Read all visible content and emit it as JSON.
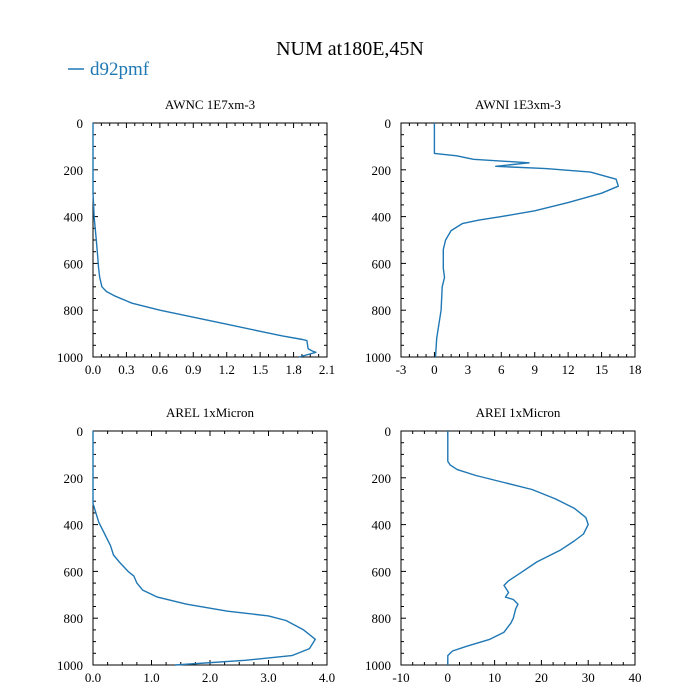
{
  "title": "NUM at180E,45N",
  "legend": [
    {
      "label": "d92pmf",
      "color": "#1f77b4"
    }
  ],
  "chart_data": [
    {
      "type": "line",
      "title": "AWNC  1E7xm-3",
      "xlim": [
        0,
        2.1
      ],
      "ylim": [
        1000,
        0
      ],
      "xticks": [
        "0.0",
        "0.3",
        "0.6",
        "0.9",
        "1.2",
        "1.5",
        "1.8",
        "2.1"
      ],
      "yticks": [
        "0",
        "200",
        "400",
        "600",
        "800",
        "1000"
      ],
      "series": [
        {
          "name": "d92pmf",
          "color": "#1f77b4",
          "x": [
            0,
            0,
            0.005,
            0.01,
            0.02,
            0.03,
            0.04,
            0.05,
            0.06,
            0.08,
            0.12,
            0.2,
            0.35,
            0.6,
            0.9,
            1.2,
            1.5,
            1.7,
            1.88,
            1.92,
            1.93,
            1.97,
            2.0,
            1.85
          ],
          "y": [
            0,
            300,
            350,
            400,
            450,
            500,
            560,
            620,
            660,
            700,
            720,
            740,
            770,
            800,
            830,
            860,
            890,
            910,
            925,
            930,
            965,
            975,
            980,
            1000
          ]
        }
      ]
    },
    {
      "type": "line",
      "title": "AWNI  1E3xm-3",
      "xlim": [
        -3,
        18
      ],
      "ylim": [
        1000,
        0
      ],
      "xticks": [
        "-3",
        "0",
        "3",
        "6",
        "9",
        "12",
        "15",
        "18"
      ],
      "yticks": [
        "0",
        "200",
        "400",
        "600",
        "800",
        "1000"
      ],
      "series": [
        {
          "name": "d92pmf",
          "color": "#1f77b4",
          "x": [
            0,
            0,
            2,
            3.5,
            8.5,
            5.5,
            10,
            14,
            16.3,
            16.5,
            15,
            12,
            9,
            6,
            4,
            2.5,
            1.5,
            1,
            0.8,
            0.8,
            0.9,
            0.7,
            0.6,
            0.4,
            0.2,
            0.1
          ],
          "y": [
            0,
            130,
            140,
            155,
            170,
            185,
            195,
            210,
            240,
            270,
            300,
            340,
            375,
            400,
            415,
            430,
            460,
            500,
            540,
            620,
            660,
            700,
            800,
            860,
            920,
            1000
          ]
        }
      ]
    },
    {
      "type": "line",
      "title": "AREL  1xMicron",
      "xlim": [
        0,
        4.0
      ],
      "ylim": [
        1000,
        0
      ],
      "xticks": [
        "0.0",
        "1.0",
        "2.0",
        "3.0",
        "4.0"
      ],
      "yticks": [
        "0",
        "200",
        "400",
        "600",
        "800",
        "1000"
      ],
      "series": [
        {
          "name": "d92pmf",
          "color": "#1f77b4",
          "x": [
            0,
            0,
            0.05,
            0.1,
            0.2,
            0.3,
            0.35,
            0.45,
            0.6,
            0.7,
            0.75,
            0.85,
            1.1,
            1.6,
            2.3,
            3.0,
            3.3,
            3.6,
            3.8,
            3.7,
            3.4,
            2.6,
            1.4
          ],
          "y": [
            0,
            310,
            350,
            390,
            440,
            490,
            530,
            560,
            600,
            620,
            650,
            680,
            710,
            740,
            770,
            790,
            810,
            850,
            890,
            930,
            960,
            980,
            1000
          ]
        }
      ]
    },
    {
      "type": "line",
      "title": "AREI  1xMicron",
      "xlim": [
        -10,
        40
      ],
      "ylim": [
        1000,
        0
      ],
      "xticks": [
        "-10",
        "0",
        "10",
        "20",
        "30",
        "40"
      ],
      "yticks": [
        "0",
        "200",
        "400",
        "600",
        "800",
        "1000"
      ],
      "series": [
        {
          "name": "d92pmf",
          "color": "#1f77b4",
          "x": [
            0,
            0,
            0.5,
            2,
            6,
            12,
            18,
            23,
            27,
            29.5,
            30,
            29,
            27,
            24,
            19,
            16,
            13,
            12,
            13,
            12.3,
            14,
            15,
            14.5,
            14,
            13.5,
            12,
            9,
            4,
            1,
            0,
            0
          ],
          "y": [
            0,
            130,
            145,
            165,
            190,
            220,
            250,
            290,
            330,
            370,
            400,
            440,
            470,
            510,
            560,
            600,
            640,
            660,
            690,
            710,
            720,
            740,
            760,
            800,
            820,
            860,
            890,
            920,
            940,
            960,
            1000
          ]
        }
      ]
    }
  ]
}
